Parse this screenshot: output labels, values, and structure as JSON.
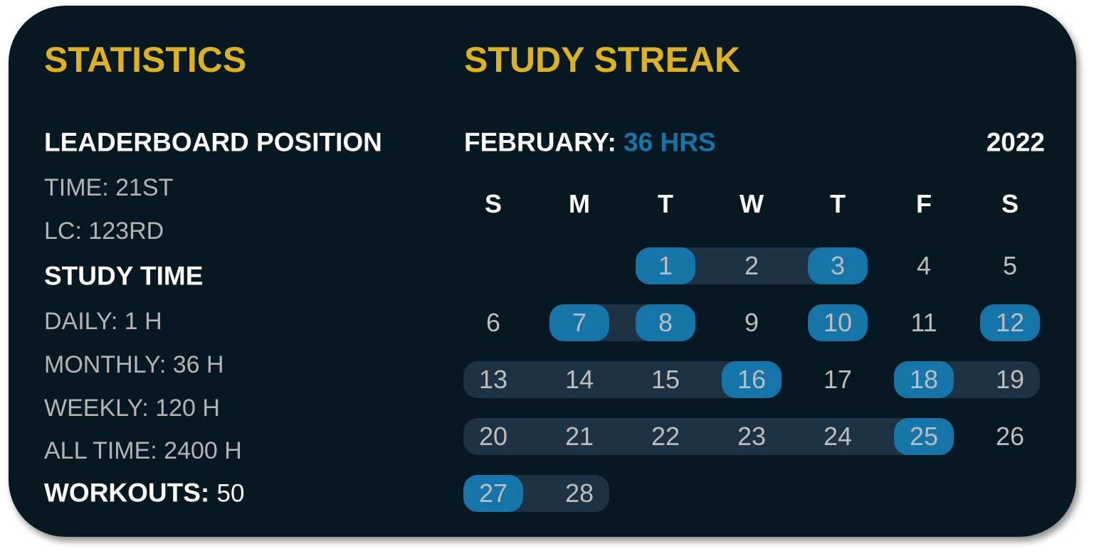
{
  "statistics": {
    "title": "STATISTICS",
    "leaderboard_heading": "LEADERBOARD POSITION",
    "time_rank": "TIME: 21ST",
    "lc_rank": "LC: 123RD",
    "study_time_heading": "STUDY TIME",
    "daily": "DAILY: 1 H",
    "monthly": "MONTHLY: 36 H",
    "weekly": "WEEKLY: 120 H",
    "all_time": "ALL TIME: 2400 H",
    "workouts_label": "WORKOUTS:",
    "workouts_value": "50"
  },
  "streak": {
    "title": "STUDY STREAK",
    "month_label": "FEBRUARY:",
    "month_hours": "36 HRS",
    "year": "2022",
    "weekdays": [
      "S",
      "M",
      "T",
      "W",
      "T",
      "F",
      "S"
    ],
    "first_weekday_index": 2,
    "days": [
      "1",
      "2",
      "3",
      "4",
      "5",
      "6",
      "7",
      "8",
      "9",
      "10",
      "11",
      "12",
      "13",
      "14",
      "15",
      "16",
      "17",
      "18",
      "19",
      "20",
      "21",
      "22",
      "23",
      "24",
      "25",
      "26",
      "27",
      "28"
    ],
    "highlighted_days": [
      1,
      3,
      7,
      8,
      10,
      12,
      16,
      18,
      25,
      27
    ],
    "streak_ranges": [
      [
        1,
        3
      ],
      [
        7,
        8
      ],
      [
        13,
        16
      ],
      [
        18,
        19
      ],
      [
        20,
        25
      ],
      [
        27,
        28
      ]
    ]
  },
  "colors": {
    "background": "#061923",
    "title": "#DEB21C",
    "accent": "#1574A8",
    "streak_bar": "#1D3344",
    "muted_text": "#B4B4B4"
  }
}
